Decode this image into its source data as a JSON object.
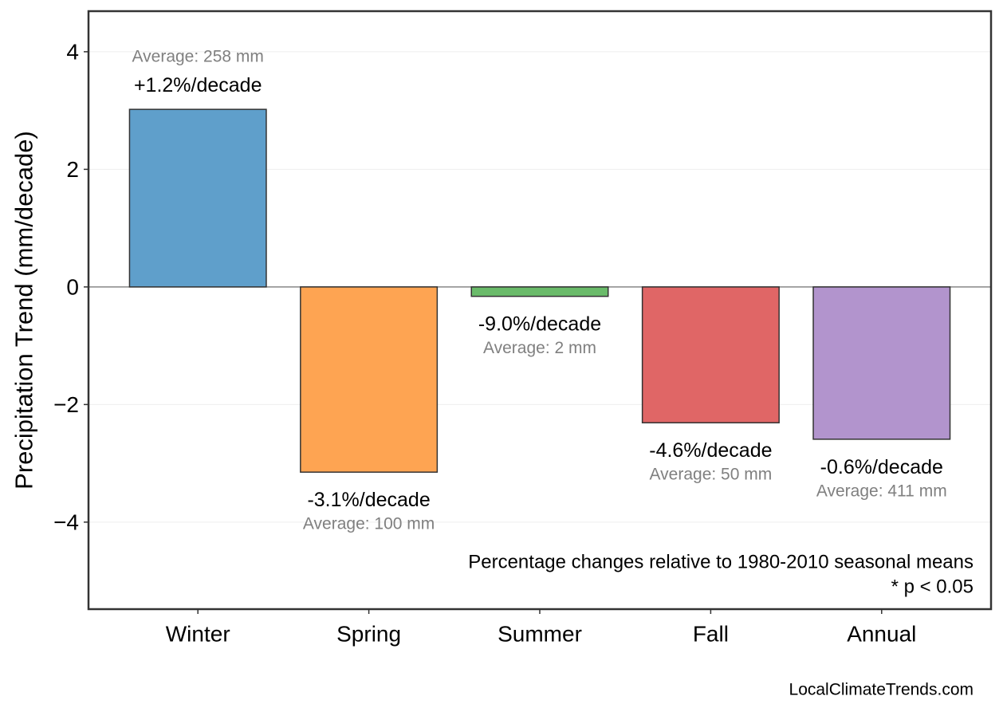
{
  "chart_data": {
    "type": "bar",
    "y_label": "Precipitation Trend (mm/decade)",
    "categories": [
      "Winter",
      "Spring",
      "Summer",
      "Fall",
      "Annual"
    ],
    "values": [
      3.02,
      -3.15,
      -0.16,
      -2.31,
      -2.59
    ],
    "colors": [
      "#5f9fcb",
      "#fea452",
      "#6abb6a",
      "#e06666",
      "#b294cd"
    ],
    "trend_labels": [
      "+1.2%/decade",
      "-3.1%/decade",
      "-9.0%/decade",
      "-4.6%/decade",
      "-0.6%/decade"
    ],
    "average_labels": [
      "Average: 258 mm",
      "Average: 100 mm",
      "Average: 2 mm",
      "Average: 50 mm",
      "Average: 411 mm"
    ],
    "ylim": [
      -5.48,
      4.69
    ],
    "yticks": [
      {
        "value": -4,
        "label": "−4"
      },
      {
        "value": -2,
        "label": "−2"
      },
      0,
      2,
      4
    ],
    "grid": true,
    "notes": [
      "Percentage changes relative to 1980-2010 seasonal means",
      "* p < 0.05"
    ],
    "source": "LocalClimateTrends.com"
  }
}
